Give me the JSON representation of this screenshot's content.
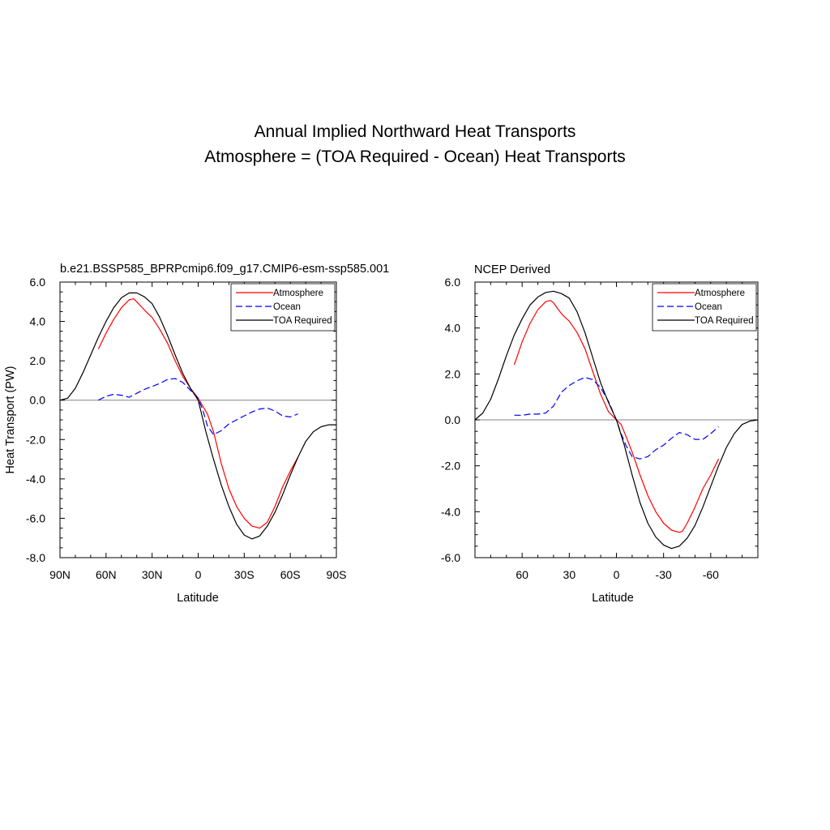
{
  "figure": {
    "title_line1": "Annual Implied Northward Heat Transports",
    "title_line2": "Atmosphere = (TOA Required - Ocean) Heat Transports"
  },
  "colors": {
    "atmosphere": "#ff0000",
    "ocean": "#0000ff",
    "toa": "#000000",
    "zero_line": "#808080"
  },
  "chart_data": [
    {
      "type": "line",
      "title": "b.e21.BSSP585_BPRPcmip6.f09_g17.CMIP6-esm-ssp585.001",
      "xlabel": "Latitude",
      "ylabel": "Heat Transport (PW)",
      "xlim": [
        90,
        -90
      ],
      "ylim": [
        -8,
        6
      ],
      "xticks": [
        90,
        60,
        30,
        0,
        -30,
        -60,
        -90
      ],
      "xtick_labels": [
        "90N",
        "60N",
        "30N",
        "0",
        "30S",
        "60S",
        "90S"
      ],
      "yticks": [
        -8,
        -6,
        -4,
        -2,
        0,
        2,
        4,
        6
      ],
      "ytick_labels": [
        "-8.0",
        "-6.0",
        "-4.0",
        "-2.0",
        "0.0",
        "2.0",
        "4.0",
        "6.0"
      ],
      "grid": false,
      "zero_line": true,
      "legend_position": "top-right",
      "series": [
        {
          "name": "Atmosphere",
          "style": "solid",
          "x": [
            65,
            60,
            55,
            50,
            45,
            42,
            40,
            37,
            34,
            30,
            25,
            20,
            15,
            10,
            5,
            0,
            -3,
            -6,
            -10,
            -15,
            -20,
            -25,
            -30,
            -35,
            -40,
            -45,
            -50,
            -55,
            -60,
            -65
          ],
          "y": [
            2.6,
            3.4,
            4.1,
            4.7,
            5.1,
            5.15,
            5.0,
            4.75,
            4.5,
            4.2,
            3.6,
            2.9,
            2.0,
            1.2,
            0.6,
            0.1,
            -0.3,
            -0.7,
            -1.6,
            -3.2,
            -4.5,
            -5.4,
            -6.0,
            -6.4,
            -6.5,
            -6.2,
            -5.4,
            -4.4,
            -3.6,
            -2.9
          ]
        },
        {
          "name": "Ocean",
          "style": "dashed",
          "x": [
            65,
            60,
            55,
            50,
            45,
            40,
            35,
            30,
            25,
            20,
            15,
            10,
            5,
            0,
            -3,
            -6,
            -10,
            -15,
            -20,
            -25,
            -30,
            -35,
            -40,
            -45,
            -50,
            -55,
            -60,
            -65
          ],
          "y": [
            0.0,
            0.2,
            0.3,
            0.25,
            0.15,
            0.35,
            0.55,
            0.7,
            0.85,
            1.05,
            1.1,
            0.9,
            0.5,
            0.1,
            -0.5,
            -1.3,
            -1.75,
            -1.55,
            -1.2,
            -1.0,
            -0.8,
            -0.6,
            -0.45,
            -0.4,
            -0.55,
            -0.8,
            -0.85,
            -0.7
          ]
        },
        {
          "name": "TOA Required",
          "style": "solid",
          "x": [
            90,
            85,
            80,
            75,
            70,
            65,
            60,
            55,
            50,
            45,
            40,
            35,
            30,
            25,
            20,
            15,
            10,
            5,
            0,
            -5,
            -10,
            -15,
            -20,
            -25,
            -30,
            -35,
            -40,
            -45,
            -50,
            -55,
            -60,
            -65,
            -70,
            -75,
            -80,
            -85,
            -90
          ],
          "y": [
            0.0,
            0.1,
            0.6,
            1.4,
            2.3,
            3.2,
            4.0,
            4.7,
            5.2,
            5.45,
            5.45,
            5.25,
            4.9,
            4.2,
            3.3,
            2.3,
            1.35,
            0.6,
            0.0,
            -1.6,
            -3.0,
            -4.3,
            -5.4,
            -6.3,
            -6.85,
            -7.05,
            -6.9,
            -6.4,
            -5.7,
            -4.8,
            -3.8,
            -2.9,
            -2.1,
            -1.6,
            -1.35,
            -1.25,
            -1.25
          ]
        }
      ]
    },
    {
      "type": "line",
      "title": "NCEP Derived",
      "xlabel": "Latitude",
      "ylabel": "",
      "xlim": [
        90,
        -90
      ],
      "ylim": [
        -6,
        6
      ],
      "xticks": [
        60,
        30,
        0,
        -30,
        -60
      ],
      "xtick_labels": [
        "60",
        "30",
        "0",
        "-30",
        "-60"
      ],
      "yticks": [
        -6,
        -4,
        -2,
        0,
        2,
        4,
        6
      ],
      "ytick_labels": [
        "-6.0",
        "-4.0",
        "-2.0",
        "0.0",
        "2.0",
        "4.0",
        "6.0"
      ],
      "grid": false,
      "zero_line": true,
      "legend_position": "top-right",
      "series": [
        {
          "name": "Atmosphere",
          "style": "solid",
          "x": [
            65,
            60,
            55,
            50,
            45,
            42,
            40,
            37,
            34,
            30,
            25,
            20,
            15,
            10,
            5,
            0,
            -3,
            -6,
            -10,
            -15,
            -20,
            -25,
            -30,
            -35,
            -40,
            -42,
            -45,
            -50,
            -55,
            -60,
            -65
          ],
          "y": [
            2.4,
            3.4,
            4.2,
            4.8,
            5.15,
            5.2,
            5.1,
            4.8,
            4.55,
            4.3,
            3.8,
            3.1,
            2.1,
            1.1,
            0.35,
            0.0,
            -0.2,
            -0.7,
            -1.4,
            -2.4,
            -3.3,
            -4.0,
            -4.5,
            -4.8,
            -4.9,
            -4.85,
            -4.5,
            -3.8,
            -3.0,
            -2.4,
            -1.7
          ]
        },
        {
          "name": "Ocean",
          "style": "dashed",
          "x": [
            65,
            60,
            55,
            50,
            45,
            40,
            35,
            30,
            25,
            20,
            15,
            10,
            5,
            0,
            -3,
            -6,
            -10,
            -15,
            -20,
            -25,
            -30,
            -35,
            -40,
            -45,
            -50,
            -55,
            -60,
            -65
          ],
          "y": [
            0.2,
            0.2,
            0.25,
            0.25,
            0.3,
            0.6,
            1.2,
            1.5,
            1.7,
            1.85,
            1.75,
            1.4,
            0.8,
            0.0,
            -0.6,
            -1.1,
            -1.6,
            -1.7,
            -1.6,
            -1.3,
            -1.1,
            -0.8,
            -0.55,
            -0.65,
            -0.85,
            -0.85,
            -0.6,
            -0.3
          ]
        },
        {
          "name": "TOA Required",
          "style": "solid",
          "x": [
            90,
            85,
            80,
            75,
            70,
            65,
            60,
            55,
            50,
            45,
            40,
            35,
            30,
            25,
            20,
            15,
            10,
            5,
            0,
            -5,
            -10,
            -15,
            -20,
            -25,
            -30,
            -35,
            -40,
            -45,
            -50,
            -55,
            -60,
            -65,
            -70,
            -75,
            -80,
            -85,
            -90
          ],
          "y": [
            0.0,
            0.3,
            0.9,
            1.8,
            2.8,
            3.7,
            4.4,
            5.0,
            5.35,
            5.55,
            5.6,
            5.5,
            5.3,
            4.7,
            3.8,
            2.7,
            1.6,
            0.75,
            0.0,
            -1.1,
            -2.4,
            -3.6,
            -4.5,
            -5.1,
            -5.45,
            -5.6,
            -5.5,
            -5.15,
            -4.6,
            -3.8,
            -2.9,
            -2.0,
            -1.2,
            -0.6,
            -0.2,
            -0.05,
            0.0
          ]
        }
      ]
    }
  ]
}
